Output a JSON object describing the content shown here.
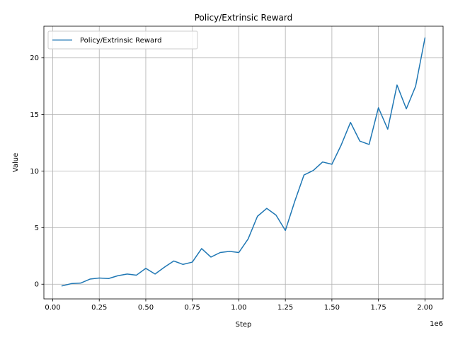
{
  "chart_data": {
    "type": "line",
    "title": "Policy/Extrinsic Reward",
    "xlabel": "Step",
    "ylabel": "Value",
    "x_offset_label": "1e6",
    "xlim": [
      -0.0475,
      2.0975
    ],
    "ylim": [
      -1.3,
      22.8
    ],
    "x_ticks": [
      0.0,
      0.25,
      0.5,
      0.75,
      1.0,
      1.25,
      1.5,
      1.75,
      2.0
    ],
    "x_tick_labels": [
      "0.00",
      "0.25",
      "0.50",
      "0.75",
      "1.00",
      "1.25",
      "1.50",
      "1.75",
      "2.00"
    ],
    "y_ticks": [
      0,
      5,
      10,
      15,
      20
    ],
    "y_tick_labels": [
      "0",
      "5",
      "10",
      "15",
      "20"
    ],
    "grid": true,
    "legend_position": "top-left",
    "series": [
      {
        "name": "Policy/Extrinsic Reward",
        "color": "#1f77b4",
        "x": [
          0.05,
          0.1,
          0.15,
          0.2,
          0.25,
          0.3,
          0.35,
          0.4,
          0.45,
          0.5,
          0.55,
          0.6,
          0.65,
          0.7,
          0.75,
          0.8,
          0.85,
          0.9,
          0.95,
          1.0,
          1.05,
          1.1,
          1.15,
          1.2,
          1.25,
          1.3,
          1.35,
          1.4,
          1.45,
          1.5,
          1.55,
          1.6,
          1.65,
          1.7,
          1.75,
          1.8,
          1.85,
          1.9,
          1.95,
          2.0
        ],
        "values": [
          -0.15,
          0.05,
          0.1,
          0.45,
          0.55,
          0.5,
          0.75,
          0.9,
          0.8,
          1.4,
          0.9,
          1.5,
          2.05,
          1.75,
          1.95,
          3.15,
          2.4,
          2.8,
          2.9,
          2.8,
          4.0,
          6.0,
          6.7,
          6.1,
          4.75,
          7.3,
          9.65,
          10.05,
          10.8,
          10.6,
          12.3,
          14.3,
          12.65,
          12.35,
          15.6,
          13.7,
          17.6,
          15.5,
          17.5,
          21.75
        ]
      }
    ]
  }
}
